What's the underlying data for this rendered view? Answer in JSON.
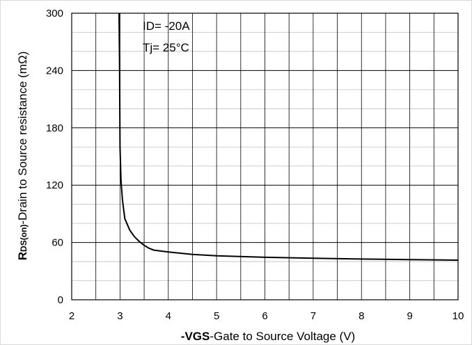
{
  "chart_data": {
    "type": "line",
    "xlabel_bold": "-VGS",
    "xlabel_rest": "-Gate to Source Voltage (V)",
    "ylabel_bold_R": "R",
    "ylabel_sub": "DS(on)",
    "ylabel_rest": "-Drain to Source resistance (mΩ)",
    "xlim": [
      2,
      10
    ],
    "ylim": [
      0,
      300
    ],
    "x_ticks": [
      "2",
      "3",
      "4",
      "5",
      "6",
      "7",
      "8",
      "9",
      "10"
    ],
    "y_ticks": [
      "0",
      "60",
      "120",
      "180",
      "240",
      "300"
    ],
    "grid": true,
    "annotations": [
      "ID= -20A",
      "Tj= 25°C"
    ],
    "series": [
      {
        "x": [
          2.98,
          2.99,
          3.0,
          3.02,
          3.05,
          3.1,
          3.2,
          3.3,
          3.4,
          3.5,
          3.6,
          3.7,
          4.0,
          4.5,
          5.0,
          6.0,
          7.0,
          8.0,
          9.0,
          10.0
        ],
        "values": [
          300,
          250,
          160,
          125,
          105,
          85,
          73,
          66,
          61,
          57,
          54,
          52,
          50,
          47.5,
          46,
          44.5,
          43.5,
          42.7,
          42,
          41.5
        ]
      }
    ]
  }
}
